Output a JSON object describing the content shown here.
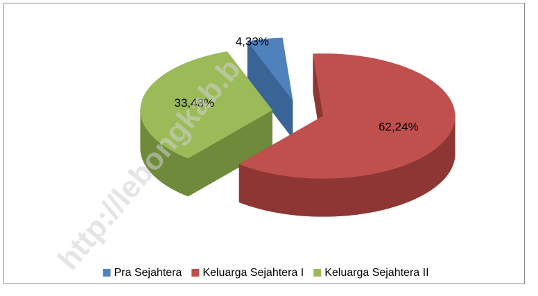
{
  "chart_data": {
    "type": "pie3d",
    "categories": [
      "Pra Sejahtera",
      "Keluarga Sejahtera I",
      "Keluarga Sejahtera II"
    ],
    "values": [
      4.33,
      62.24,
      33.43
    ],
    "value_labels": [
      "4,33%",
      "62,24%",
      "33,43%"
    ],
    "colors": [
      "#4f81bd",
      "#c0504d",
      "#9bbb59"
    ],
    "side_colors": [
      "#3a6496",
      "#8e3634",
      "#6f8a3a"
    ],
    "legend": "bottom"
  },
  "watermark": "http://lebongkab.b"
}
